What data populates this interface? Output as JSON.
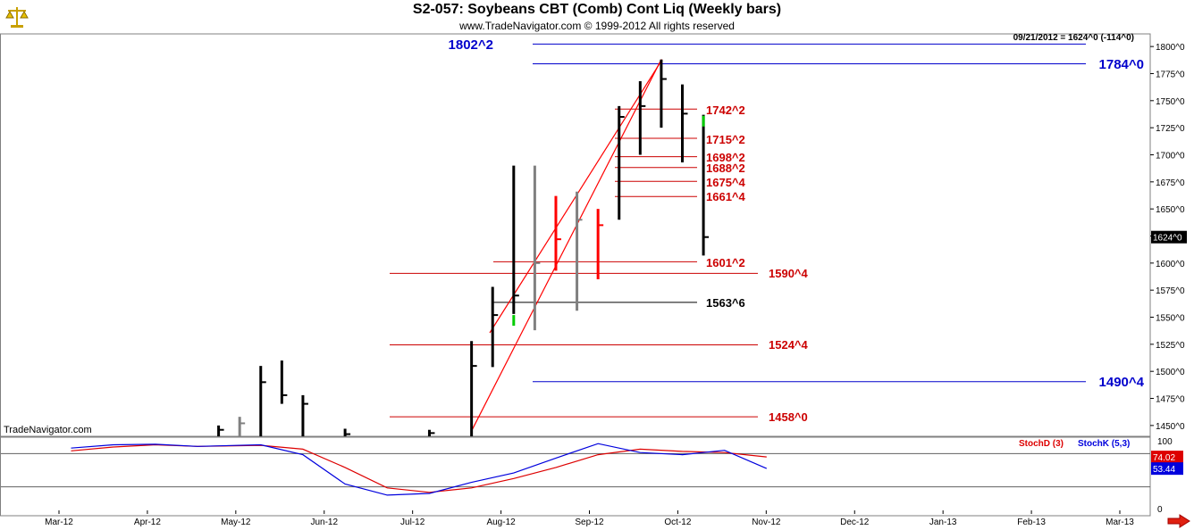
{
  "header": {
    "title": "S2-057:  Soybeans CBT (Comb) Cont Liq  (Weekly bars)",
    "copyright": "www.TradeNavigator.com © 1999-2012 All rights reserved",
    "datestamp": "09/21/2012 = 1624^0 (-114^0)",
    "brand": "TradeNavigator.com"
  },
  "icons": {
    "logo": "gold-scale-icon",
    "scroll": "red-arrow-right-icon"
  },
  "colors": {
    "up": "#000000",
    "down_red": "#ff0000",
    "gray": "#808080",
    "green": "#00cc00",
    "blue_line": "#0000cc",
    "red_line": "#cc0000",
    "stochD": "#dd0000",
    "stochK": "#0000dd"
  },
  "chart_data": [
    {
      "type": "ohlc",
      "ylim": [
        1440,
        1810
      ],
      "y_ticks": [
        "1450^0",
        "1475^0",
        "1500^0",
        "1525^0",
        "1550^0",
        "1575^0",
        "1600^0",
        "1625^0",
        "1650^0",
        "1675^0",
        "1700^0",
        "1725^0",
        "1750^0",
        "1775^0",
        "1800^0"
      ],
      "y_tick_values": [
        1450,
        1475,
        1500,
        1525,
        1550,
        1575,
        1600,
        1625,
        1650,
        1675,
        1700,
        1725,
        1750,
        1775,
        1800
      ],
      "x_labels": [
        "Mar-12",
        "Apr-12",
        "May-12",
        "Jun-12",
        "Jul-12",
        "Aug-12",
        "Sep-12",
        "Oct-12",
        "Nov-12",
        "Dec-12",
        "Jan-13",
        "Feb-13",
        "Mar-13"
      ],
      "last_price_label": "1624^0",
      "last_price": 1624,
      "bars": [
        {
          "date": "2012-04-23",
          "high": 1450,
          "low": 1440,
          "close": 1446,
          "color": "black"
        },
        {
          "date": "2012-04-30",
          "high": 1458,
          "low": 1440,
          "close": 1452,
          "color": "gray"
        },
        {
          "date": "2012-05-07",
          "high": 1505,
          "low": 1440,
          "close": 1490,
          "color": "black"
        },
        {
          "date": "2012-05-14",
          "high": 1510,
          "low": 1470,
          "close": 1478,
          "color": "black"
        },
        {
          "date": "2012-05-21",
          "high": 1478,
          "low": 1440,
          "close": 1470,
          "color": "black"
        },
        {
          "date": "2012-06-04",
          "high": 1447,
          "low": 1440,
          "close": 1442,
          "color": "black"
        },
        {
          "date": "2012-07-02",
          "high": 1446,
          "low": 1440,
          "close": 1443,
          "color": "black"
        },
        {
          "date": "2012-07-16",
          "high": 1528,
          "low": 1440,
          "close": 1505,
          "color": "black"
        },
        {
          "date": "2012-07-23",
          "high": 1578,
          "low": 1504,
          "close": 1552,
          "color": "black"
        },
        {
          "date": "2012-07-30",
          "high": 1690,
          "low": 1553,
          "close": 1570,
          "open": 1552,
          "color": "black",
          "green_open": true
        },
        {
          "date": "2012-08-06",
          "high": 1690,
          "low": 1538,
          "close": 1600,
          "color": "gray"
        },
        {
          "date": "2012-08-13",
          "high": 1662,
          "low": 1593,
          "close": 1622,
          "color": "red"
        },
        {
          "date": "2012-08-20",
          "high": 1666,
          "low": 1556,
          "close": 1640,
          "color": "gray"
        },
        {
          "date": "2012-08-27",
          "high": 1650,
          "low": 1585,
          "close": 1635,
          "color": "red"
        },
        {
          "date": "2012-09-03",
          "high": 1745,
          "low": 1640,
          "close": 1735,
          "color": "black"
        },
        {
          "date": "2012-09-10",
          "high": 1768,
          "low": 1700,
          "close": 1745,
          "color": "black"
        },
        {
          "date": "2012-09-17",
          "high": 1788,
          "low": 1725,
          "close": 1770,
          "color": "black"
        },
        {
          "date": "2012-09-24",
          "high": 1765,
          "low": 1693,
          "close": 1738,
          "color": "black"
        },
        {
          "date": "2012-10-01",
          "high": 1737,
          "low": 1607,
          "close": 1624,
          "open": 1736,
          "color": "black",
          "green_open": true
        }
      ],
      "levels": [
        {
          "label": "1802^2",
          "value": 1802.25,
          "color": "blue"
        },
        {
          "label": "1784^0",
          "value": 1784,
          "color": "blue"
        },
        {
          "label": "1742^2",
          "value": 1742.25,
          "color": "red"
        },
        {
          "label": "1715^2",
          "value": 1715.25,
          "color": "red"
        },
        {
          "label": "1698^2",
          "value": 1698.25,
          "color": "red"
        },
        {
          "label": "1688^2",
          "value": 1688.25,
          "color": "red"
        },
        {
          "label": "1675^4",
          "value": 1675.5,
          "color": "red"
        },
        {
          "label": "1661^4",
          "value": 1661.5,
          "color": "red"
        },
        {
          "label": "1601^2",
          "value": 1601.25,
          "color": "red"
        },
        {
          "label": "1590^4",
          "value": 1590.5,
          "color": "red"
        },
        {
          "label": "1563^6",
          "value": 1563.75,
          "color": "black"
        },
        {
          "label": "1524^4",
          "value": 1524.5,
          "color": "red"
        },
        {
          "label": "1490^4",
          "value": 1490.5,
          "color": "blue"
        },
        {
          "label": "1458^0",
          "value": 1458,
          "color": "red"
        }
      ],
      "trendline": {
        "from_date": "2012-07-16",
        "from_value": 1445,
        "to_date": "2012-09-17",
        "to_value": 1788
      }
    },
    {
      "type": "line",
      "ylim": [
        0,
        100
      ],
      "y_ticks": [
        "100",
        "0"
      ],
      "series": [
        {
          "name": "StochD (3)",
          "last_label": "74.02",
          "points": [
            [
              "2012-03-05",
              85
            ],
            [
              "2012-03-19",
              92
            ],
            [
              "2012-04-02",
              96
            ],
            [
              "2012-04-16",
              93
            ],
            [
              "2012-05-07",
              95
            ],
            [
              "2012-05-21",
              88
            ],
            [
              "2012-06-04",
              55
            ],
            [
              "2012-06-18",
              18
            ],
            [
              "2012-07-02",
              10
            ],
            [
              "2012-07-16",
              18
            ],
            [
              "2012-07-30",
              35
            ],
            [
              "2012-08-13",
              55
            ],
            [
              "2012-08-27",
              78
            ],
            [
              "2012-09-10",
              88
            ],
            [
              "2012-09-24",
              84
            ],
            [
              "2012-10-08",
              82
            ],
            [
              "2012-10-22",
              74
            ]
          ]
        },
        {
          "name": "StochK (5,3)",
          "last_label": "53.44",
          "points": [
            [
              "2012-03-05",
              90
            ],
            [
              "2012-03-19",
              96
            ],
            [
              "2012-04-02",
              97
            ],
            [
              "2012-04-16",
              93
            ],
            [
              "2012-05-07",
              96
            ],
            [
              "2012-05-21",
              78
            ],
            [
              "2012-06-04",
              25
            ],
            [
              "2012-06-18",
              5
            ],
            [
              "2012-07-02",
              8
            ],
            [
              "2012-07-16",
              28
            ],
            [
              "2012-07-30",
              45
            ],
            [
              "2012-08-13",
              72
            ],
            [
              "2012-08-27",
              98
            ],
            [
              "2012-09-10",
              82
            ],
            [
              "2012-09-24",
              78
            ],
            [
              "2012-10-08",
              86
            ],
            [
              "2012-10-22",
              53
            ]
          ]
        }
      ]
    }
  ]
}
